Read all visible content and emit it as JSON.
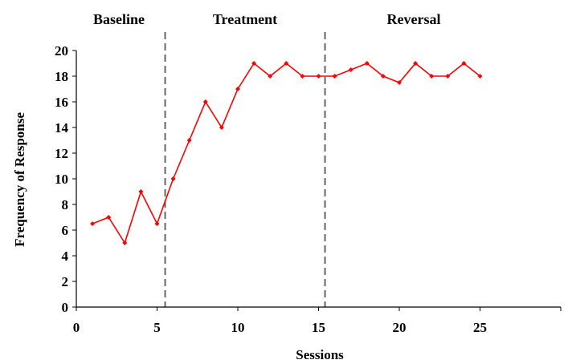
{
  "chart_data": {
    "type": "line",
    "title": "",
    "xlabel": "Sessions",
    "ylabel": "Frequency of Response",
    "xlim": [
      0,
      30
    ],
    "ylim": [
      0,
      20
    ],
    "xticks": [
      0,
      5,
      10,
      15,
      20,
      25
    ],
    "yticks": [
      0,
      2,
      4,
      6,
      8,
      10,
      12,
      14,
      16,
      18,
      20
    ],
    "grid": false,
    "legend": "none",
    "phases": [
      {
        "label": "Baseline",
        "start": 0,
        "end": 5.5
      },
      {
        "label": "Treatment",
        "start": 5.5,
        "end": 15.4
      },
      {
        "label": "Reversal",
        "start": 15.4,
        "end": 30
      }
    ],
    "phase_lines": [
      5.5,
      15.4
    ],
    "series": [
      {
        "color": "#ff0000",
        "x": [
          1,
          2,
          3,
          4,
          5,
          6,
          7,
          8,
          9,
          10,
          11,
          12,
          13,
          14,
          15,
          16,
          17,
          18,
          19,
          20,
          21,
          22,
          23,
          24,
          25
        ],
        "y": [
          6.5,
          7,
          5,
          9,
          6.5,
          10,
          13,
          16,
          14,
          17,
          19,
          18,
          19,
          18,
          18,
          18,
          18.5,
          19,
          18,
          17.5,
          19,
          18,
          18,
          19,
          18
        ]
      }
    ]
  }
}
